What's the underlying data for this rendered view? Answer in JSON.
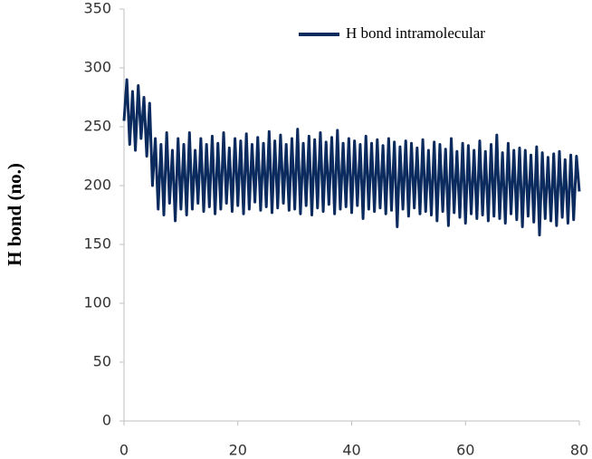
{
  "chart_data": {
    "type": "line",
    "ylabel": "H bond (no.)",
    "x": [
      0,
      0.5,
      1,
      1.5,
      2,
      2.5,
      3,
      3.5,
      4,
      4.5,
      5,
      5.5,
      6,
      6.5,
      7,
      7.5,
      8,
      8.5,
      9,
      9.5,
      10,
      10.5,
      11,
      11.5,
      12,
      12.5,
      13,
      13.5,
      14,
      14.5,
      15,
      15.5,
      16,
      16.5,
      17,
      17.5,
      18,
      18.5,
      19,
      19.5,
      20,
      20.5,
      21,
      21.5,
      22,
      22.5,
      23,
      23.5,
      24,
      24.5,
      25,
      25.5,
      26,
      26.5,
      27,
      27.5,
      28,
      28.5,
      29,
      29.5,
      30,
      30.5,
      31,
      31.5,
      32,
      32.5,
      33,
      33.5,
      34,
      34.5,
      35,
      35.5,
      36,
      36.5,
      37,
      37.5,
      38,
      38.5,
      39,
      39.5,
      40,
      40.5,
      41,
      41.5,
      42,
      42.5,
      43,
      43.5,
      44,
      44.5,
      45,
      45.5,
      46,
      46.5,
      47,
      47.5,
      48,
      48.5,
      49,
      49.5,
      50,
      50.5,
      51,
      51.5,
      52,
      52.5,
      53,
      53.5,
      54,
      54.5,
      55,
      55.5,
      56,
      56.5,
      57,
      57.5,
      58,
      58.5,
      59,
      59.5,
      60,
      60.5,
      61,
      61.5,
      62,
      62.5,
      63,
      63.5,
      64,
      64.5,
      65,
      65.5,
      66,
      66.5,
      67,
      67.5,
      68,
      68.5,
      69,
      69.5,
      70,
      70.5,
      71,
      71.5,
      72,
      72.5,
      73,
      73.5,
      74,
      74.5,
      75,
      75.5,
      76,
      76.5,
      77,
      77.5,
      78,
      78.5,
      79,
      79.5,
      80
    ],
    "series": [
      {
        "name": "H bond intramolecular",
        "color": "#0b2a5e",
        "values": [
          255,
          290,
          235,
          280,
          230,
          285,
          240,
          275,
          225,
          270,
          200,
          240,
          180,
          235,
          175,
          245,
          185,
          230,
          170,
          240,
          180,
          235,
          175,
          245,
          180,
          230,
          185,
          240,
          178,
          235,
          182,
          242,
          176,
          236,
          180,
          245,
          185,
          232,
          178,
          240,
          183,
          238,
          176,
          244,
          180,
          235,
          186,
          241,
          179,
          236,
          182,
          246,
          177,
          238,
          181,
          243,
          185,
          235,
          179,
          240,
          180,
          248,
          176,
          236,
          183,
          242,
          175,
          239,
          181,
          245,
          178,
          237,
          184,
          241,
          176,
          247,
          180,
          236,
          182,
          240,
          177,
          238,
          183,
          235,
          172,
          242,
          180,
          236,
          178,
          239,
          181,
          234,
          176,
          240,
          179,
          237,
          165,
          233,
          180,
          238,
          174,
          236,
          181,
          232,
          176,
          239,
          178,
          230,
          175,
          237,
          170,
          235,
          178,
          231,
          166,
          240,
          177,
          229,
          173,
          236,
          168,
          234,
          176,
          230,
          172,
          238,
          175,
          229,
          170,
          235,
          174,
          243,
          172,
          228,
          168,
          236,
          176,
          230,
          171,
          232,
          165,
          230,
          174,
          226,
          169,
          233,
          158,
          228,
          172,
          224,
          170,
          227,
          166,
          229,
          173,
          222,
          168,
          226,
          171,
          225,
          195
        ]
      }
    ],
    "xlim": [
      0,
      80
    ],
    "xticks": [
      0,
      20,
      40,
      60,
      80
    ],
    "ylim": [
      0,
      350
    ],
    "yticks": [
      0,
      50,
      100,
      150,
      200,
      250,
      300,
      350
    ],
    "grid": false,
    "legend": "top-right"
  }
}
